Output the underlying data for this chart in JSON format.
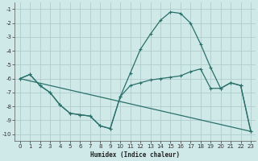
{
  "xlabel": "Humidex (Indice chaleur)",
  "background_color": "#cfe8e8",
  "grid_color": "#b0cccc",
  "line_color": "#2a706a",
  "xlim": [
    -0.5,
    23.5
  ],
  "ylim": [
    -10.5,
    -0.5
  ],
  "yticks": [
    -10,
    -9,
    -8,
    -7,
    -6,
    -5,
    -4,
    -3,
    -2,
    -1
  ],
  "xticks": [
    0,
    1,
    2,
    3,
    4,
    5,
    6,
    7,
    8,
    9,
    10,
    11,
    12,
    13,
    14,
    15,
    16,
    17,
    18,
    19,
    20,
    21,
    22,
    23
  ],
  "curve1": {
    "x": [
      0,
      1,
      2,
      3,
      4,
      5,
      6,
      7,
      8,
      9,
      10,
      11,
      12,
      13,
      14,
      15,
      16,
      17,
      18,
      19,
      20,
      21,
      22,
      23
    ],
    "y": [
      -6.0,
      -5.7,
      -6.5,
      -7.0,
      -7.9,
      -8.5,
      -8.6,
      -8.7,
      -9.4,
      -9.6,
      -7.3,
      -5.6,
      -3.9,
      -2.8,
      -1.8,
      -1.2,
      -1.3,
      -2.0,
      -3.5,
      -5.2,
      -6.7,
      -6.3,
      -6.5,
      -9.8
    ]
  },
  "curve2": {
    "x": [
      0,
      1,
      2,
      3,
      4,
      5,
      6,
      7,
      8,
      9,
      10,
      11,
      12,
      13,
      14,
      15,
      16,
      17,
      18,
      19,
      20,
      21,
      22,
      23
    ],
    "y": [
      -6.0,
      -5.7,
      -6.5,
      -7.0,
      -7.9,
      -8.5,
      -8.6,
      -8.7,
      -9.4,
      -9.6,
      -7.3,
      -6.5,
      -6.3,
      -6.1,
      -6.0,
      -5.9,
      -5.8,
      -5.5,
      -5.3,
      -6.7,
      -6.7,
      -6.3,
      -6.5,
      -9.8
    ]
  },
  "line_straight": {
    "x": [
      0,
      23
    ],
    "y": [
      -6.0,
      -9.8
    ]
  }
}
